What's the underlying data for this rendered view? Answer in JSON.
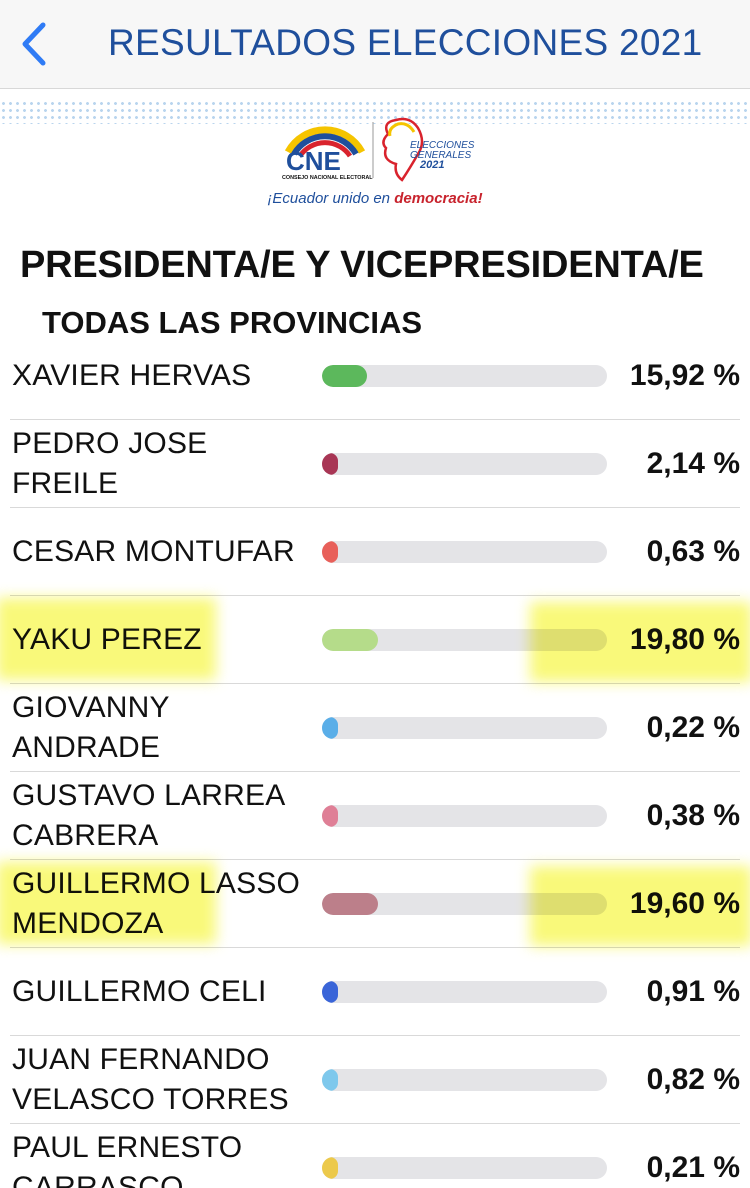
{
  "header": {
    "title": "RESULTADOS ELECCIONES 2021",
    "back_icon": "chevron-left-icon"
  },
  "banner": {
    "logo_text": "CNE",
    "logo_caption": "CONSEJO NACIONAL ELECTORAL",
    "elections_line1": "ELECCIONES",
    "elections_line2": "GENERALES",
    "elections_year": "2021",
    "slogan_pre": "¡Ecuador unido en ",
    "slogan_bold": "democracia!"
  },
  "section": {
    "title": "PRESIDENTA/E Y VICEPRESIDENTA/E",
    "subtitle": "TODAS LAS PROVINCIAS"
  },
  "candidates": [
    {
      "name": "XAVIER HERVAS",
      "pct": "15,92 %",
      "value": 15.92,
      "color": "#5cb85c",
      "highlighted": false
    },
    {
      "name": "PEDRO JOSE FREILE",
      "pct": "2,14 %",
      "value": 2.14,
      "color": "#a83655",
      "highlighted": false
    },
    {
      "name": "CESAR MONTUFAR",
      "pct": "0,63 %",
      "value": 0.63,
      "color": "#e8605a",
      "highlighted": false
    },
    {
      "name": "YAKU PEREZ",
      "pct": "19,80 %",
      "value": 19.8,
      "color": "#b5dc8a",
      "highlighted": true
    },
    {
      "name": "GIOVANNY ANDRADE",
      "pct": "0,22 %",
      "value": 0.22,
      "color": "#5aaee8",
      "highlighted": false
    },
    {
      "name": "GUSTAVO LARREA CABRERA",
      "pct": "0,38 %",
      "value": 0.38,
      "color": "#df7f96",
      "highlighted": false
    },
    {
      "name": "GUILLERMO LASSO MENDOZA",
      "pct": "19,60 %",
      "value": 19.6,
      "color": "#bc7f8a",
      "highlighted": true
    },
    {
      "name": "GUILLERMO CELI",
      "pct": "0,91 %",
      "value": 0.91,
      "color": "#3a65d8",
      "highlighted": false
    },
    {
      "name": "JUAN FERNANDO VELASCO TORRES",
      "pct": "0,82 %",
      "value": 0.82,
      "color": "#7ec8ec",
      "highlighted": false
    },
    {
      "name": "PAUL ERNESTO CARRASCO",
      "pct": "0,21 %",
      "value": 0.21,
      "color": "#ecc94b",
      "highlighted": false
    }
  ],
  "colors": {
    "title_blue": "#1f4f9c",
    "track": "#e4e4e7",
    "highlighter": "#f6f628"
  }
}
